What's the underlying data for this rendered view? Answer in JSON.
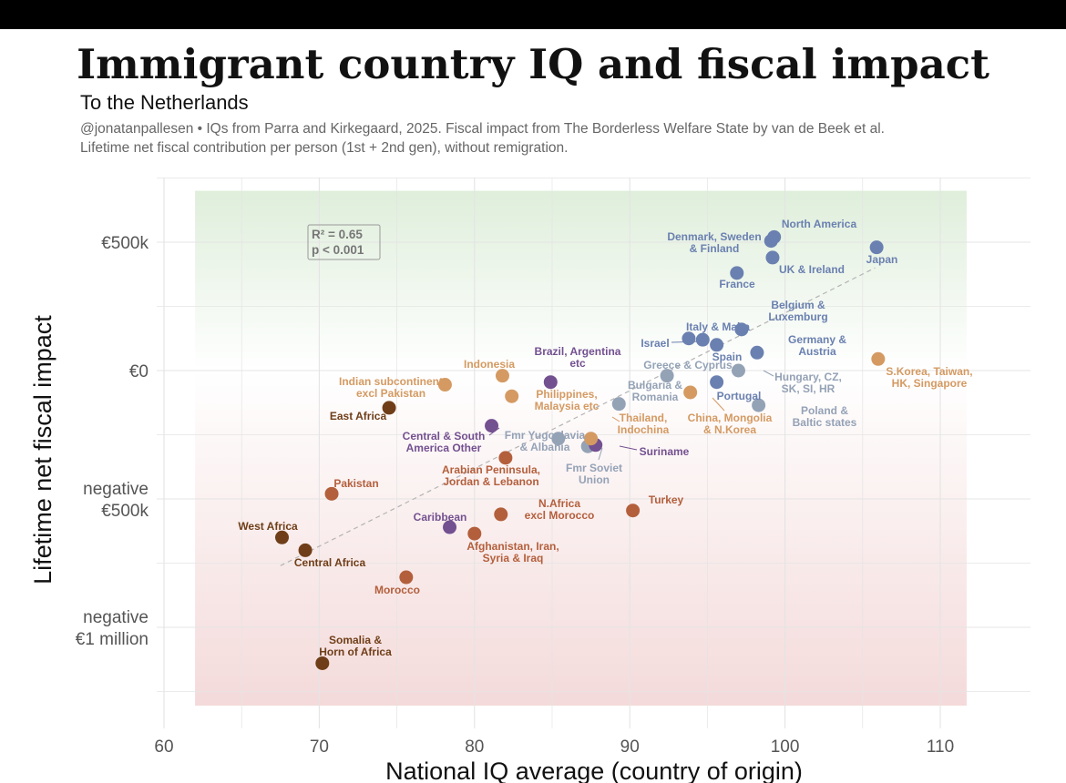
{
  "title": "Immigrant country IQ and fiscal impact",
  "subtitle": "To the Netherlands",
  "caption_lines": [
    "@jonatanpallesen • IQs from Parra and Kirkegaard, 2025. Fiscal impact from The Borderless Welfare State by van de Beek et al.",
    "Lifetime net fiscal contribution per person (1st + 2nd gen), without remigration."
  ],
  "chart_data": {
    "type": "scatter",
    "xlabel": "National IQ average (country of origin)",
    "ylabel": "Lifetime net fiscal impact",
    "xlim": [
      60,
      113
    ],
    "ylim": [
      -1250000,
      750000
    ],
    "x_ticks": [
      60,
      70,
      80,
      90,
      100,
      110
    ],
    "y_ticks": [
      {
        "value": 500000,
        "label": [
          "€500k"
        ]
      },
      {
        "value": 0,
        "label": [
          "€0"
        ]
      },
      {
        "value": -500000,
        "label": [
          "negative",
          "€500k"
        ]
      },
      {
        "value": -1000000,
        "label": [
          "negative",
          "€1 million"
        ]
      }
    ],
    "grid": true,
    "background_bands": {
      "positive": "#e3f0df",
      "negative": "#f5dede"
    },
    "stats_box": [
      "R² = 0.65",
      "p < 0.001"
    ],
    "trend_line": {
      "x1": 67.5,
      "y1": -760000,
      "x2": 105.8,
      "y2": 400000
    },
    "colors": {
      "blue": "#6a80b0",
      "grayblue": "#94a2b6",
      "purple": "#735090",
      "tan": "#d49a62",
      "rust": "#b35f3c",
      "brown": "#6f3e18"
    },
    "points": [
      {
        "label": [
          "North America"
        ],
        "x": 99.3,
        "y": 520000,
        "color": "blue"
      },
      {
        "label": [
          "Denmark, Sweden",
          "& Finland"
        ],
        "x": 99.1,
        "y": 505000,
        "color": "blue"
      },
      {
        "label": [
          "Japan"
        ],
        "x": 105.9,
        "y": 480000,
        "color": "blue"
      },
      {
        "label": [
          "UK & Ireland"
        ],
        "x": 99.2,
        "y": 440000,
        "color": "blue"
      },
      {
        "label": [
          "France"
        ],
        "x": 96.9,
        "y": 380000,
        "color": "blue"
      },
      {
        "label": [
          "Belgium &",
          "Luxemburg"
        ],
        "x": 97.2,
        "y": 160000,
        "color": "blue"
      },
      {
        "label": [
          "Italy & Malta"
        ],
        "x": 94.7,
        "y": 120000,
        "color": "blue"
      },
      {
        "label": [
          "Israel"
        ],
        "x": 93.8,
        "y": 125000,
        "color": "blue"
      },
      {
        "label": [
          "Spain"
        ],
        "x": 95.6,
        "y": 100000,
        "color": "blue"
      },
      {
        "label": [
          "Germany &",
          "Austria"
        ],
        "x": 98.2,
        "y": 70000,
        "color": "blue"
      },
      {
        "label": [
          "Portugal"
        ],
        "x": 95.6,
        "y": -45000,
        "color": "blue"
      },
      {
        "label": [
          "Greece & Cyprus"
        ],
        "x": 92.4,
        "y": -20000,
        "color": "grayblue"
      },
      {
        "label": [
          "Hungary, CZ,",
          "SK, SI, HR"
        ],
        "x": 97.0,
        "y": 0,
        "color": "grayblue"
      },
      {
        "label": [
          "Poland &",
          "Baltic states"
        ],
        "x": 98.3,
        "y": -135000,
        "color": "grayblue"
      },
      {
        "label": [
          "Bulgaria &",
          "Romania"
        ],
        "x": 89.3,
        "y": -130000,
        "color": "grayblue"
      },
      {
        "label": [
          "Fmr Yugoslavia",
          "& Albania"
        ],
        "x": 85.4,
        "y": -265000,
        "color": "grayblue"
      },
      {
        "label": [
          "Fmr Soviet",
          "Union"
        ],
        "x": 87.3,
        "y": -295000,
        "color": "grayblue"
      },
      {
        "label": [
          "Brazil, Argentina",
          "etc"
        ],
        "x": 84.9,
        "y": -45000,
        "color": "purple"
      },
      {
        "label": [
          "Central & South",
          "America Other"
        ],
        "x": 81.1,
        "y": -215000,
        "color": "purple"
      },
      {
        "label": [
          "Suriname"
        ],
        "x": 87.8,
        "y": -290000,
        "color": "purple"
      },
      {
        "label": [
          "Caribbean"
        ],
        "x": 78.4,
        "y": -610000,
        "color": "purple"
      },
      {
        "label": [
          "S.Korea, Taiwan,",
          "HK, Singapore"
        ],
        "x": 106.0,
        "y": 45000,
        "color": "tan"
      },
      {
        "label": [
          "Indonesia"
        ],
        "x": 81.8,
        "y": -20000,
        "color": "tan"
      },
      {
        "label": [
          "Indian subcontinent",
          "excl Pakistan"
        ],
        "x": 78.1,
        "y": -55000,
        "color": "tan"
      },
      {
        "label": [
          "Philippines,",
          "Malaysia etc"
        ],
        "x": 82.4,
        "y": -100000,
        "color": "tan"
      },
      {
        "label": [
          "China, Mongolia",
          "& N.Korea"
        ],
        "x": 93.9,
        "y": -85000,
        "color": "tan"
      },
      {
        "label": [
          "Thailand,",
          "Indochina"
        ],
        "x": 87.5,
        "y": -265000,
        "color": "tan"
      },
      {
        "label": [
          "Arabian Peninsula,",
          "Jordan & Lebanon"
        ],
        "x": 82.0,
        "y": -340000,
        "color": "rust"
      },
      {
        "label": [
          "Pakistan"
        ],
        "x": 70.8,
        "y": -480000,
        "color": "rust"
      },
      {
        "label": [
          "N.Africa",
          "excl Morocco"
        ],
        "x": 81.7,
        "y": -560000,
        "color": "rust"
      },
      {
        "label": [
          "Turkey"
        ],
        "x": 90.2,
        "y": -545000,
        "color": "rust"
      },
      {
        "label": [
          "Afghanistan, Iran,",
          "Syria & Iraq"
        ],
        "x": 80.0,
        "y": -635000,
        "color": "rust"
      },
      {
        "label": [
          "Morocco"
        ],
        "x": 75.6,
        "y": -805000,
        "color": "rust"
      },
      {
        "label": [
          "East Africa"
        ],
        "x": 74.5,
        "y": -145000,
        "color": "brown"
      },
      {
        "label": [
          "West Africa"
        ],
        "x": 67.6,
        "y": -650000,
        "color": "brown"
      },
      {
        "label": [
          "Central Africa"
        ],
        "x": 69.1,
        "y": -700000,
        "color": "brown"
      },
      {
        "label": [
          "Somalia &",
          "Horn of Africa"
        ],
        "x": 70.2,
        "y": -1140000,
        "color": "brown"
      }
    ]
  }
}
